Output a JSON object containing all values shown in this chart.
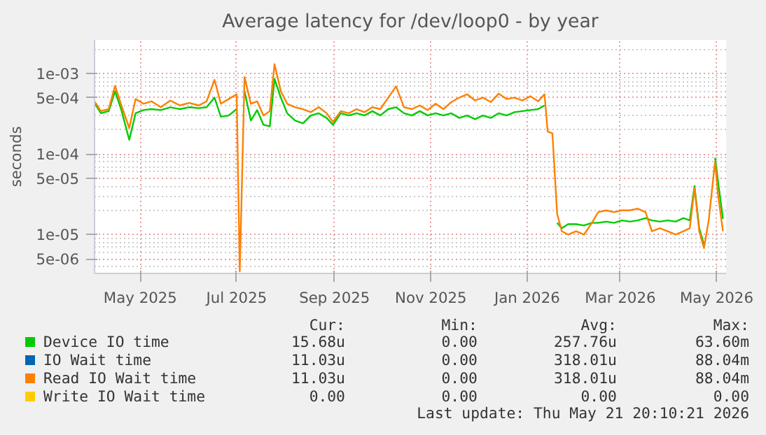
{
  "chart_data": {
    "type": "line",
    "title": "Average latency for /dev/loop0 - by year",
    "ylabel": "seconds",
    "x": [
      "2025-04-16",
      "2025-04-20",
      "2025-04-25",
      "2025-04-29",
      "2025-05-03",
      "2025-05-08",
      "2025-05-12",
      "2025-05-17",
      "2025-05-22",
      "2025-05-28",
      "2025-06-03",
      "2025-06-09",
      "2025-06-15",
      "2025-06-21",
      "2025-06-26",
      "2025-07-01",
      "2025-07-05",
      "2025-07-10",
      "2025-07-15",
      "2025-07-17",
      "2025-07-20",
      "2025-07-24",
      "2025-07-28",
      "2025-08-01",
      "2025-08-05",
      "2025-08-08",
      "2025-08-12",
      "2025-08-16",
      "2025-08-21",
      "2025-08-26",
      "2025-08-31",
      "2025-09-05",
      "2025-09-10",
      "2025-09-14",
      "2025-09-19",
      "2025-09-24",
      "2025-09-29",
      "2025-10-04",
      "2025-10-09",
      "2025-10-14",
      "2025-10-19",
      "2025-10-24",
      "2025-10-29",
      "2025-11-03",
      "2025-11-08",
      "2025-11-13",
      "2025-11-18",
      "2025-11-23",
      "2025-11-28",
      "2025-12-03",
      "2025-12-08",
      "2025-12-13",
      "2025-12-18",
      "2025-12-23",
      "2025-12-28",
      "2026-01-02",
      "2026-01-07",
      "2026-01-12",
      "2026-01-17",
      "2026-01-22",
      "2026-01-26",
      "2026-01-28",
      "2026-01-31",
      "2026-02-03",
      "2026-02-06",
      "2026-02-10",
      "2026-02-15",
      "2026-02-20",
      "2026-02-25",
      "2026-03-01",
      "2026-03-06",
      "2026-03-11",
      "2026-03-16",
      "2026-03-21",
      "2026-03-26",
      "2026-03-31",
      "2026-04-04",
      "2026-04-09",
      "2026-04-14",
      "2026-04-19",
      "2026-04-24",
      "2026-04-28",
      "2026-05-01",
      "2026-05-04",
      "2026-05-07",
      "2026-05-10",
      "2026-05-14",
      "2026-05-16",
      "2026-05-19"
    ],
    "series": [
      {
        "name": "Device IO time",
        "color": "#00cc00",
        "values": [
          0.00043,
          0.00032,
          0.00034,
          0.0006,
          0.00035,
          0.00015,
          0.00032,
          0.00035,
          0.00036,
          0.00035,
          0.00038,
          0.00036,
          0.00038,
          0.00037,
          0.00038,
          0.0005,
          0.00029,
          0.0003,
          0.00036,
          null,
          0.0006,
          0.00026,
          0.00035,
          0.00023,
          0.00022,
          0.00085,
          0.0005,
          0.00032,
          0.00026,
          0.00024,
          0.0003,
          0.00032,
          0.00028,
          0.00023,
          0.00032,
          0.0003,
          0.00032,
          0.0003,
          0.00034,
          0.0003,
          0.00036,
          0.00038,
          0.00032,
          0.0003,
          0.00034,
          0.0003,
          0.00032,
          0.0003,
          0.00032,
          0.00028,
          0.0003,
          0.00027,
          0.0003,
          0.00028,
          0.00032,
          0.0003,
          0.00033,
          0.00034,
          0.00035,
          0.00036,
          0.0004,
          null,
          null,
          1.4e-05,
          1.2e-05,
          1.35e-05,
          1.35e-05,
          1.3e-05,
          1.4e-05,
          1.4e-05,
          1.45e-05,
          1.4e-05,
          1.5e-05,
          1.45e-05,
          1.5e-05,
          1.6e-05,
          1.5e-05,
          1.45e-05,
          1.5e-05,
          1.45e-05,
          1.6e-05,
          1.5e-05,
          4e-05,
          1.2e-05,
          7.5e-06,
          null,
          9e-05,
          4.4e-05,
          1.57e-05
        ]
      },
      {
        "name": "IO Wait time",
        "color": "#0066b3",
        "values": [
          null,
          null,
          null,
          null,
          null,
          null,
          null,
          null,
          null,
          null,
          null,
          null,
          null,
          null,
          null,
          null,
          null,
          null,
          null,
          null,
          null,
          null,
          null,
          null,
          null,
          null,
          null,
          null,
          null,
          null,
          null,
          null,
          null,
          null,
          null,
          null,
          null,
          null,
          null,
          null,
          null,
          null,
          null,
          null,
          null,
          null,
          null,
          null,
          null,
          null,
          null,
          null,
          null,
          null,
          null,
          null,
          null,
          null,
          null,
          null,
          null,
          null,
          null,
          null,
          null,
          null,
          null,
          null,
          null,
          null,
          null,
          null,
          null,
          null,
          null,
          null,
          null,
          null,
          null,
          null,
          null,
          null,
          null,
          null,
          null,
          null,
          null,
          null,
          null
        ]
      },
      {
        "name": "Read IO Wait time",
        "color": "#ff8000",
        "values": [
          0.00045,
          0.00034,
          0.00036,
          0.0007,
          0.0004,
          0.00021,
          0.00048,
          0.00042,
          0.00045,
          0.00038,
          0.00046,
          0.0004,
          0.00043,
          0.0004,
          0.00045,
          0.00083,
          0.00042,
          0.00048,
          0.00055,
          3.5e-06,
          0.0009,
          0.00042,
          0.00045,
          0.0003,
          0.00034,
          0.0013,
          0.0006,
          0.00042,
          0.00038,
          0.00036,
          0.00033,
          0.00038,
          0.00032,
          0.00025,
          0.00034,
          0.00032,
          0.00036,
          0.00033,
          0.00038,
          0.00036,
          0.0005,
          0.00069,
          0.00038,
          0.00036,
          0.0004,
          0.00035,
          0.00042,
          0.00036,
          0.00044,
          0.0005,
          0.00055,
          0.00046,
          0.0005,
          0.00044,
          0.00056,
          0.00048,
          0.0005,
          0.00046,
          0.00052,
          0.00045,
          0.00055,
          0.00019,
          0.00018,
          1.8e-05,
          1.1e-05,
          1e-05,
          1.1e-05,
          1e-05,
          1.4e-05,
          1.9e-05,
          2e-05,
          1.9e-05,
          2e-05,
          2e-05,
          2.1e-05,
          1.9e-05,
          1.1e-05,
          1.2e-05,
          1.1e-05,
          1e-05,
          1.1e-05,
          1.2e-05,
          3.8e-05,
          1.1e-05,
          6.8e-06,
          1.5e-05,
          8e-05,
          3e-05,
          1.1e-05
        ]
      },
      {
        "name": "Write IO Wait time",
        "color": "#ffcc00",
        "values": [
          null,
          null,
          null,
          null,
          null,
          null,
          null,
          null,
          null,
          null,
          null,
          null,
          null,
          null,
          null,
          null,
          null,
          null,
          null,
          null,
          null,
          null,
          null,
          null,
          null,
          null,
          null,
          null,
          null,
          null,
          null,
          null,
          null,
          null,
          null,
          null,
          null,
          null,
          null,
          null,
          null,
          null,
          null,
          null,
          null,
          null,
          null,
          null,
          null,
          null,
          null,
          null,
          null,
          null,
          null,
          null,
          null,
          null,
          null,
          null,
          null,
          null,
          null,
          null,
          null,
          null,
          null,
          null,
          null,
          null,
          null,
          null,
          null,
          null,
          null,
          null,
          null,
          null,
          null,
          null,
          null,
          null,
          null,
          null,
          null,
          null,
          null,
          null,
          null
        ]
      }
    ],
    "log": "y",
    "xlim": [
      "2025-04-16",
      "2026-05-21"
    ],
    "xticks": [
      {
        "value": "2025-05-15",
        "label": "May 2025"
      },
      {
        "value": "2025-07-15",
        "label": "Jul 2025"
      },
      {
        "value": "2025-09-15",
        "label": "Sep 2025"
      },
      {
        "value": "2025-11-15",
        "label": "Nov 2025"
      },
      {
        "value": "2026-01-15",
        "label": "Jan 2026"
      },
      {
        "value": "2026-03-15",
        "label": "Mar 2026"
      },
      {
        "value": "2026-05-15",
        "label": "May 2026"
      }
    ],
    "ylim": [
      3.3e-06,
      0.0026
    ],
    "yticks": [
      {
        "value": 5e-06,
        "label": "5e-06"
      },
      {
        "value": 1e-05,
        "label": "1e-05"
      },
      {
        "value": 5e-05,
        "label": "5e-05"
      },
      {
        "value": 0.0001,
        "label": "1e-04"
      },
      {
        "value": 0.0005,
        "label": "5e-04"
      },
      {
        "value": 0.001,
        "label": "1e-03"
      }
    ],
    "grid": true,
    "legend": "bottom",
    "annotations": [
      "Cur:",
      "Min:",
      "Avg:",
      "Max:",
      "15.68u",
      "0.00",
      "257.76u",
      "63.60m",
      "11.03u",
      "0.00",
      "318.01u",
      "88.04m",
      "11.03u",
      "0.00",
      "318.01u",
      "88.04m",
      "0.00",
      "0.00",
      "0.00",
      "0.00",
      "Last update: Thu May 21 20:10:21 2026"
    ]
  }
}
